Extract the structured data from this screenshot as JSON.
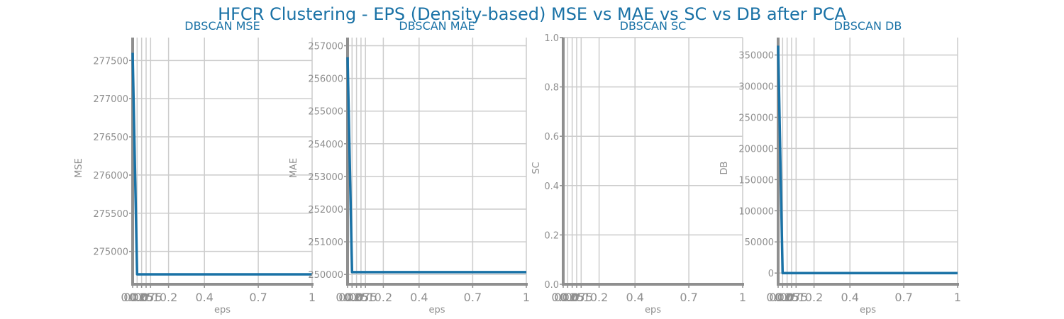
{
  "figure_title": "HFCR Clustering - EPS (Density-based) MSE vs MAE vs SC vs DB after PCA",
  "colors": {
    "title": "#1a72a6",
    "line": "#1a72a6",
    "grid": "#cccccc",
    "axis": "#8f8f8f",
    "text": "#8f8f8f"
  },
  "chart_data": [
    {
      "type": "line",
      "title": "DBSCAN MSE",
      "xlabel": "eps",
      "ylabel": "MSE",
      "grid": true,
      "xlim": [
        0.0,
        1.0
      ],
      "ylim": [
        274570,
        277800
      ],
      "x_ticks": [
        0.0,
        0.025,
        0.05,
        0.075,
        0.1,
        0.2,
        0.4,
        0.7,
        1.0
      ],
      "x_tick_labels": [
        "0.0",
        "0.025",
        "0.05",
        "0.075",
        "0.1",
        "0.2",
        "0.4",
        "0.7",
        "1"
      ],
      "y_ticks": [
        275000,
        275500,
        276000,
        276500,
        277000,
        277500
      ],
      "y_tick_labels": [
        "275000",
        "275500",
        "276000",
        "276500",
        "277000",
        "277500"
      ],
      "x": [
        0.0,
        0.025,
        0.05,
        0.075,
        0.1,
        0.2,
        0.4,
        0.7,
        1.0
      ],
      "y": [
        277600,
        274700,
        274700,
        274700,
        274700,
        274700,
        274700,
        274700,
        274700
      ]
    },
    {
      "type": "line",
      "title": "DBSCAN MAE",
      "xlabel": "eps",
      "ylabel": "MAE",
      "grid": true,
      "xlim": [
        0.0,
        1.0
      ],
      "ylim": [
        249700,
        257250
      ],
      "x_ticks": [
        0.0,
        0.025,
        0.05,
        0.075,
        0.1,
        0.2,
        0.4,
        0.7,
        1.0
      ],
      "x_tick_labels": [
        "0.0",
        "0.025",
        "0.05",
        "0.075",
        "0.1",
        "0.2",
        "0.4",
        "0.7",
        "1"
      ],
      "y_ticks": [
        250000,
        251000,
        252000,
        253000,
        254000,
        255000,
        256000,
        257000
      ],
      "y_tick_labels": [
        "250000",
        "251000",
        "252000",
        "253000",
        "254000",
        "255000",
        "256000",
        "257000"
      ],
      "x": [
        0.0,
        0.025,
        0.05,
        0.075,
        0.1,
        0.2,
        0.4,
        0.7,
        1.0
      ],
      "y": [
        256650,
        250070,
        250070,
        250070,
        250070,
        250070,
        250070,
        250070,
        250070
      ]
    },
    {
      "type": "line",
      "title": "DBSCAN SC",
      "xlabel": "eps",
      "ylabel": "SC",
      "grid": true,
      "xlim": [
        0.0,
        1.0
      ],
      "ylim": [
        0.0,
        1.0
      ],
      "x_ticks": [
        0.0,
        0.025,
        0.05,
        0.075,
        0.1,
        0.2,
        0.4,
        0.7,
        1.0
      ],
      "x_tick_labels": [
        "0.0",
        "0.025",
        "0.05",
        "0.075",
        "0.1",
        "0.2",
        "0.4",
        "0.7",
        "1"
      ],
      "y_ticks": [
        0.0,
        0.2,
        0.4,
        0.6,
        0.8,
        1.0
      ],
      "y_tick_labels": [
        "0.0",
        "0.2",
        "0.4",
        "0.6",
        "0.8",
        "1.0"
      ],
      "x": [],
      "y": []
    },
    {
      "type": "line",
      "title": "DBSCAN DB",
      "xlabel": "eps",
      "ylabel": "DB",
      "grid": true,
      "xlim": [
        0.0,
        1.0
      ],
      "ylim": [
        -18000,
        378000
      ],
      "x_ticks": [
        0.0,
        0.025,
        0.05,
        0.075,
        0.1,
        0.2,
        0.4,
        0.7,
        1.0
      ],
      "x_tick_labels": [
        "0.0",
        "0.025",
        "0.05",
        "0.075",
        "0.1",
        "0.2",
        "0.4",
        "0.7",
        "1"
      ],
      "y_ticks": [
        0,
        50000,
        100000,
        150000,
        200000,
        250000,
        300000,
        350000
      ],
      "y_tick_labels": [
        "0",
        "50000",
        "100000",
        "150000",
        "200000",
        "250000",
        "300000",
        "350000"
      ],
      "x": [
        0.0,
        0.025,
        0.05,
        0.075,
        0.1,
        0.2,
        0.4,
        0.7,
        1.0
      ],
      "y": [
        365000,
        0,
        0,
        0,
        0,
        0,
        0,
        0,
        0
      ]
    }
  ]
}
